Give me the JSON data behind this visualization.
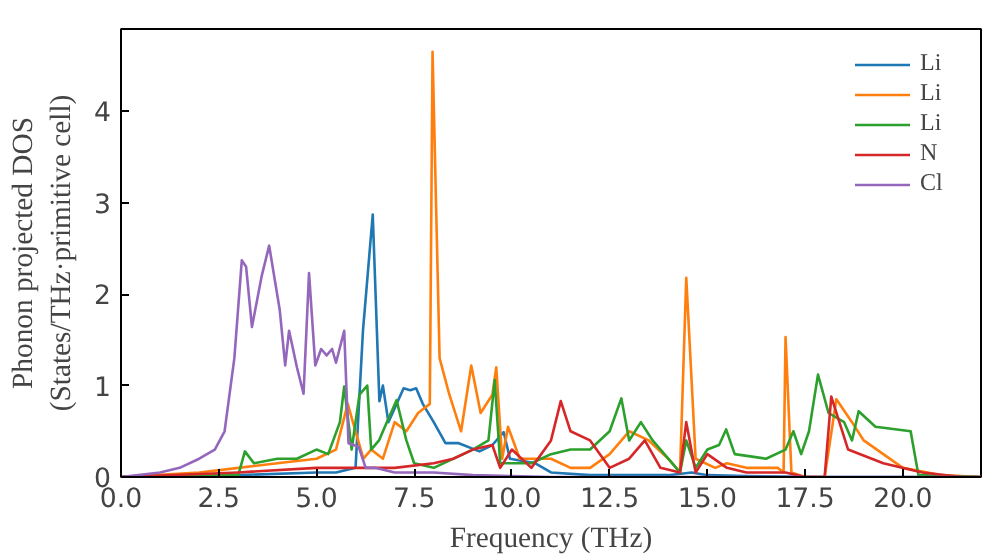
{
  "chart_data": {
    "type": "line",
    "xlabel": "Frequency (THz)",
    "ylabel": "Phonon projected DOS\n(States/THz·primitive cell)",
    "xlim": [
      0,
      22
    ],
    "ylim": [
      0,
      4.9
    ],
    "xticks": [
      {
        "value": 0,
        "label": "0.0"
      },
      {
        "value": 2.5,
        "label": "2.5"
      },
      {
        "value": 5,
        "label": "5.0"
      },
      {
        "value": 7.5,
        "label": "7.5"
      },
      {
        "value": 10,
        "label": "10.0"
      },
      {
        "value": 12.5,
        "label": "12.5"
      },
      {
        "value": 15,
        "label": "15.0"
      },
      {
        "value": 17.5,
        "label": "17.5"
      },
      {
        "value": 20,
        "label": "20.0"
      }
    ],
    "yticks": [
      0,
      1,
      2,
      3,
      4
    ],
    "legend": "top right",
    "grid": false,
    "series": [
      {
        "name": "Li",
        "color": "#1f77b4",
        "x": [
          0,
          3,
          5,
          5.5,
          6.0,
          6.19,
          6.44,
          6.61,
          6.7,
          6.84,
          7.05,
          7.23,
          7.4,
          7.55,
          7.72,
          8.0,
          8.3,
          8.64,
          9.17,
          9.5,
          9.79,
          9.95,
          10.6,
          11.0,
          12,
          14,
          14.6,
          15,
          16,
          18,
          20,
          22
        ],
        "values": [
          0,
          0.02,
          0.05,
          0.05,
          0.1,
          1.6,
          2.87,
          0.83,
          1.0,
          0.6,
          0.8,
          0.97,
          0.95,
          0.97,
          0.8,
          0.6,
          0.37,
          0.37,
          0.28,
          0.35,
          0.49,
          0.2,
          0.15,
          0.05,
          0.02,
          0.02,
          0.05,
          0.02,
          0.01,
          0,
          0,
          0
        ]
      },
      {
        "name": "Li",
        "color": "#ff7f0e",
        "x": [
          0,
          2,
          3,
          4,
          5,
          5.5,
          5.8,
          6.0,
          6.2,
          6.4,
          6.7,
          7.0,
          7.3,
          7.6,
          7.9,
          7.97,
          8.15,
          8.4,
          8.7,
          8.96,
          9.2,
          9.5,
          9.6,
          9.75,
          9.9,
          10.2,
          11,
          11.5,
          12,
          12.5,
          13,
          13.5,
          14,
          14.3,
          14.46,
          14.7,
          15.2,
          15.5,
          16,
          16.8,
          16.95,
          17.0,
          17.15,
          17.5,
          18.0,
          18.3,
          18.7,
          19,
          20,
          21,
          22
        ],
        "values": [
          0,
          0.05,
          0.1,
          0.15,
          0.2,
          0.3,
          0.8,
          0.5,
          0.2,
          0.3,
          0.2,
          0.6,
          0.5,
          0.7,
          0.8,
          4.65,
          1.3,
          0.9,
          0.5,
          1.22,
          0.7,
          0.9,
          1.2,
          0.2,
          0.55,
          0.2,
          0.2,
          0.1,
          0.1,
          0.25,
          0.5,
          0.4,
          0.2,
          0.05,
          2.18,
          0.2,
          0.1,
          0.15,
          0.1,
          0.1,
          0.05,
          1.53,
          0.05,
          0,
          0,
          0.85,
          0.6,
          0.4,
          0.1,
          0.02,
          0
        ]
      },
      {
        "name": "Li",
        "color": "#2ca02c",
        "x": [
          0,
          3,
          3.17,
          3.4,
          4,
          4.5,
          5.0,
          5.3,
          5.6,
          5.71,
          5.9,
          6.1,
          6.3,
          6.4,
          6.6,
          6.8,
          7.05,
          7.3,
          7.5,
          8,
          9,
          9.4,
          9.56,
          9.7,
          10.5,
          11,
          11.5,
          12,
          12.5,
          12.8,
          13,
          13.3,
          13.6,
          14,
          14.3,
          14.46,
          14.7,
          15,
          15.3,
          15.48,
          15.7,
          16.5,
          17.0,
          17.2,
          17.4,
          17.6,
          17.83,
          18.1,
          18.5,
          18.7,
          18.87,
          19.3,
          20.2,
          20.4,
          22
        ],
        "values": [
          0,
          0.02,
          0.28,
          0.15,
          0.2,
          0.2,
          0.3,
          0.25,
          0.6,
          0.99,
          0.3,
          0.9,
          1.0,
          0.3,
          0.4,
          0.6,
          0.84,
          0.4,
          0.15,
          0.1,
          0.3,
          0.4,
          1.06,
          0.15,
          0.15,
          0.25,
          0.3,
          0.3,
          0.5,
          0.86,
          0.4,
          0.6,
          0.4,
          0.2,
          0.05,
          0.4,
          0.1,
          0.3,
          0.35,
          0.52,
          0.25,
          0.2,
          0.3,
          0.5,
          0.25,
          0.5,
          1.12,
          0.7,
          0.6,
          0.4,
          0.72,
          0.55,
          0.5,
          0.02,
          0
        ]
      },
      {
        "name": "N",
        "color": "#d62728",
        "x": [
          0,
          3,
          5,
          7,
          8,
          8.5,
          9,
          9.5,
          9.7,
          10,
          10.5,
          11,
          11.25,
          11.5,
          12,
          12.5,
          13,
          13.4,
          13.8,
          14.3,
          14.46,
          14.7,
          15,
          15.5,
          16,
          17,
          17.5,
          18,
          18.17,
          18.6,
          19.5,
          20.5,
          21.5,
          22
        ],
        "values": [
          0,
          0.05,
          0.1,
          0.1,
          0.15,
          0.2,
          0.3,
          0.35,
          0.1,
          0.3,
          0.1,
          0.4,
          0.83,
          0.5,
          0.4,
          0.1,
          0.2,
          0.4,
          0.1,
          0.05,
          0.6,
          0.05,
          0.25,
          0.1,
          0.05,
          0.05,
          0,
          0,
          0.88,
          0.3,
          0.15,
          0.05,
          0,
          0
        ]
      },
      {
        "name": "Cl",
        "color": "#9467bd",
        "x": [
          0,
          1,
          1.5,
          2,
          2.4,
          2.65,
          2.9,
          3.09,
          3.2,
          3.35,
          3.6,
          3.79,
          4.06,
          4.2,
          4.3,
          4.5,
          4.67,
          4.81,
          4.97,
          5.12,
          5.26,
          5.4,
          5.5,
          5.71,
          5.82,
          6.08,
          6.26,
          6.5,
          7,
          8,
          9,
          10,
          11,
          22
        ],
        "values": [
          0,
          0.05,
          0.1,
          0.2,
          0.3,
          0.5,
          1.3,
          2.37,
          2.3,
          1.64,
          2.2,
          2.53,
          1.83,
          1.22,
          1.6,
          1.2,
          0.91,
          2.23,
          1.22,
          1.4,
          1.33,
          1.4,
          1.25,
          1.6,
          0.37,
          0.33,
          0.1,
          0.1,
          0.05,
          0.05,
          0.02,
          0.01,
          0,
          0
        ]
      }
    ]
  }
}
